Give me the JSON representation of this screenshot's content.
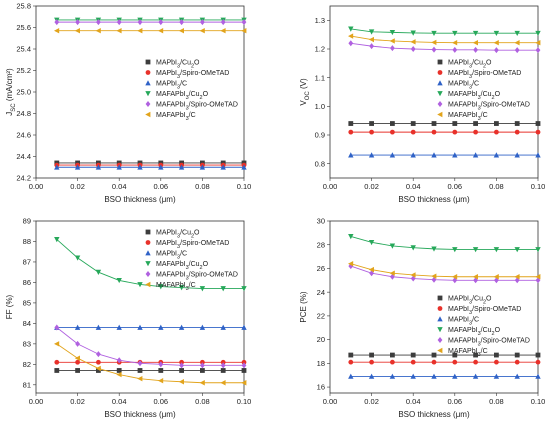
{
  "colors": {
    "MAPbI3/Cu2O": "#3d3d3d",
    "MAPbI3/Spiro-OMeTAD": "#e8312a",
    "MAPbI3/C": "#2f62c7",
    "MAFAPbI3/Cu2O": "#26a85a",
    "MAFAPbI3/Spiro-OMeTAD": "#b061e0",
    "MAFAPbI3/C": "#e2a41c"
  },
  "chart_data": [
    {
      "type": "line",
      "xlabel": "BSO thickness (μm)",
      "ylabel": "J_SC (mA/cm²)",
      "xlim": [
        0.0,
        0.1
      ],
      "ylim": [
        24.2,
        25.8
      ],
      "xticks": [
        "0.00",
        "0.02",
        "0.04",
        "0.06",
        "0.08",
        "0.10"
      ],
      "yticks": [
        "24.2",
        "24.4",
        "24.6",
        "24.8",
        "25.0",
        "25.2",
        "25.4",
        "25.6",
        "25.8"
      ],
      "grid": false,
      "legend": "right-center",
      "x": [
        0.01,
        0.02,
        0.03,
        0.04,
        0.05,
        0.06,
        0.07,
        0.08,
        0.09,
        0.1
      ],
      "series": [
        {
          "name": "MAPbI3/Cu2O",
          "marker": "square",
          "values": [
            24.34,
            24.34,
            24.34,
            24.34,
            24.34,
            24.34,
            24.34,
            24.34,
            24.34,
            24.34
          ]
        },
        {
          "name": "MAPbI3/Spiro-OMeTAD",
          "marker": "circle",
          "values": [
            24.32,
            24.32,
            24.32,
            24.32,
            24.32,
            24.32,
            24.32,
            24.32,
            24.32,
            24.32
          ]
        },
        {
          "name": "MAPbI3/C",
          "marker": "triangle-up",
          "values": [
            24.3,
            24.3,
            24.3,
            24.3,
            24.3,
            24.3,
            24.3,
            24.3,
            24.3,
            24.3
          ]
        },
        {
          "name": "MAFAPbI3/Cu2O",
          "marker": "triangle-down",
          "values": [
            25.67,
            25.67,
            25.67,
            25.67,
            25.67,
            25.67,
            25.67,
            25.67,
            25.67,
            25.67
          ]
        },
        {
          "name": "MAFAPbI3/Spiro-OMeTAD",
          "marker": "diamond",
          "values": [
            25.65,
            25.65,
            25.65,
            25.65,
            25.65,
            25.65,
            25.65,
            25.65,
            25.65,
            25.65
          ]
        },
        {
          "name": "MAFAPbI3/C",
          "marker": "triangle-left",
          "values": [
            25.57,
            25.57,
            25.57,
            25.57,
            25.57,
            25.57,
            25.57,
            25.57,
            25.57,
            25.57
          ]
        }
      ]
    },
    {
      "type": "line",
      "xlabel": "BSO thickness (μm)",
      "ylabel": "V_OC (V)",
      "xlim": [
        0.0,
        0.1
      ],
      "ylim": [
        0.75,
        1.35
      ],
      "xticks": [
        "0.00",
        "0.02",
        "0.04",
        "0.06",
        "0.08",
        "0.10"
      ],
      "yticks": [
        "0.8",
        "0.9",
        "1.0",
        "1.1",
        "1.2",
        "1.3"
      ],
      "grid": false,
      "legend": "right-center",
      "x": [
        0.01,
        0.02,
        0.03,
        0.04,
        0.05,
        0.06,
        0.07,
        0.08,
        0.09,
        0.1
      ],
      "series": [
        {
          "name": "MAPbI3/Cu2O",
          "marker": "square",
          "values": [
            0.94,
            0.94,
            0.94,
            0.94,
            0.94,
            0.94,
            0.94,
            0.94,
            0.94,
            0.94
          ]
        },
        {
          "name": "MAPbI3/Spiro-OMeTAD",
          "marker": "circle",
          "values": [
            0.91,
            0.91,
            0.91,
            0.91,
            0.91,
            0.91,
            0.91,
            0.91,
            0.91,
            0.91
          ]
        },
        {
          "name": "MAPbI3/C",
          "marker": "triangle-up",
          "values": [
            0.83,
            0.83,
            0.83,
            0.83,
            0.83,
            0.83,
            0.83,
            0.83,
            0.83,
            0.83
          ]
        },
        {
          "name": "MAFAPbI3/Cu2O",
          "marker": "triangle-down",
          "values": [
            1.27,
            1.26,
            1.258,
            1.256,
            1.255,
            1.255,
            1.255,
            1.255,
            1.255,
            1.255
          ]
        },
        {
          "name": "MAFAPbI3/Spiro-OMeTAD",
          "marker": "diamond",
          "values": [
            1.22,
            1.21,
            1.203,
            1.2,
            1.198,
            1.197,
            1.197,
            1.196,
            1.196,
            1.196
          ]
        },
        {
          "name": "MAFAPbI3/C",
          "marker": "triangle-left",
          "values": [
            1.245,
            1.233,
            1.228,
            1.225,
            1.223,
            1.222,
            1.222,
            1.222,
            1.222,
            1.222
          ]
        }
      ]
    },
    {
      "type": "line",
      "xlabel": "BSO thickness (μm)",
      "ylabel": "FF (%)",
      "xlim": [
        0.0,
        0.1
      ],
      "ylim": [
        80.6,
        89.0
      ],
      "xticks": [
        "0.00",
        "0.02",
        "0.04",
        "0.06",
        "0.08",
        "0.10"
      ],
      "yticks": [
        "81",
        "82",
        "83",
        "84",
        "85",
        "86",
        "87",
        "88",
        "89"
      ],
      "grid": false,
      "legend": "right-top",
      "x": [
        0.01,
        0.02,
        0.03,
        0.04,
        0.05,
        0.06,
        0.07,
        0.08,
        0.09,
        0.1
      ],
      "series": [
        {
          "name": "MAPbI3/Cu2O",
          "marker": "square",
          "values": [
            81.7,
            81.7,
            81.7,
            81.7,
            81.7,
            81.7,
            81.7,
            81.7,
            81.7,
            81.7
          ]
        },
        {
          "name": "MAPbI3/Spiro-OMeTAD",
          "marker": "circle",
          "values": [
            82.1,
            82.1,
            82.1,
            82.1,
            82.1,
            82.1,
            82.1,
            82.1,
            82.1,
            82.1
          ]
        },
        {
          "name": "MAPbI3/C",
          "marker": "triangle-up",
          "values": [
            83.8,
            83.8,
            83.8,
            83.8,
            83.8,
            83.8,
            83.8,
            83.8,
            83.8,
            83.8
          ]
        },
        {
          "name": "MAFAPbI3/Cu2O",
          "marker": "triangle-down",
          "values": [
            88.1,
            87.2,
            86.5,
            86.1,
            85.9,
            85.8,
            85.75,
            85.7,
            85.7,
            85.7
          ]
        },
        {
          "name": "MAFAPbI3/Spiro-OMeTAD",
          "marker": "diamond",
          "values": [
            83.8,
            83.0,
            82.5,
            82.2,
            82.05,
            82.0,
            81.95,
            81.95,
            81.95,
            81.95
          ]
        },
        {
          "name": "MAFAPbI3/C",
          "marker": "triangle-left",
          "values": [
            83.0,
            82.3,
            81.8,
            81.5,
            81.3,
            81.2,
            81.15,
            81.1,
            81.1,
            81.1
          ]
        }
      ]
    },
    {
      "type": "line",
      "xlabel": "BSO thickness (μm)",
      "ylabel": "PCE (%)",
      "xlim": [
        0.0,
        0.1
      ],
      "ylim": [
        15.5,
        30.0
      ],
      "xticks": [
        "0.00",
        "0.02",
        "0.04",
        "0.06",
        "0.08",
        "0.10"
      ],
      "yticks": [
        "16",
        "18",
        "20",
        "22",
        "24",
        "26",
        "28",
        "30"
      ],
      "grid": false,
      "legend": "right-center",
      "x": [
        0.01,
        0.02,
        0.03,
        0.04,
        0.05,
        0.06,
        0.07,
        0.08,
        0.09,
        0.1
      ],
      "series": [
        {
          "name": "MAPbI3/Cu2O",
          "marker": "square",
          "values": [
            18.7,
            18.7,
            18.7,
            18.7,
            18.7,
            18.7,
            18.7,
            18.7,
            18.7,
            18.7
          ]
        },
        {
          "name": "MAPbI3/Spiro-OMeTAD",
          "marker": "circle",
          "values": [
            18.1,
            18.1,
            18.1,
            18.1,
            18.1,
            18.1,
            18.1,
            18.1,
            18.1,
            18.1
          ]
        },
        {
          "name": "MAPbI3/C",
          "marker": "triangle-up",
          "values": [
            16.9,
            16.9,
            16.9,
            16.9,
            16.9,
            16.9,
            16.9,
            16.9,
            16.9,
            16.9
          ]
        },
        {
          "name": "MAFAPbI3/Cu2O",
          "marker": "triangle-down",
          "values": [
            28.7,
            28.2,
            27.9,
            27.75,
            27.65,
            27.6,
            27.6,
            27.6,
            27.6,
            27.6
          ]
        },
        {
          "name": "MAFAPbI3/Spiro-OMeTAD",
          "marker": "diamond",
          "values": [
            26.2,
            25.6,
            25.3,
            25.15,
            25.05,
            25.0,
            25.0,
            25.0,
            25.0,
            25.0
          ]
        },
        {
          "name": "MAFAPbI3/C",
          "marker": "triangle-left",
          "values": [
            26.4,
            25.9,
            25.6,
            25.45,
            25.35,
            25.3,
            25.3,
            25.3,
            25.3,
            25.3
          ]
        }
      ]
    }
  ]
}
